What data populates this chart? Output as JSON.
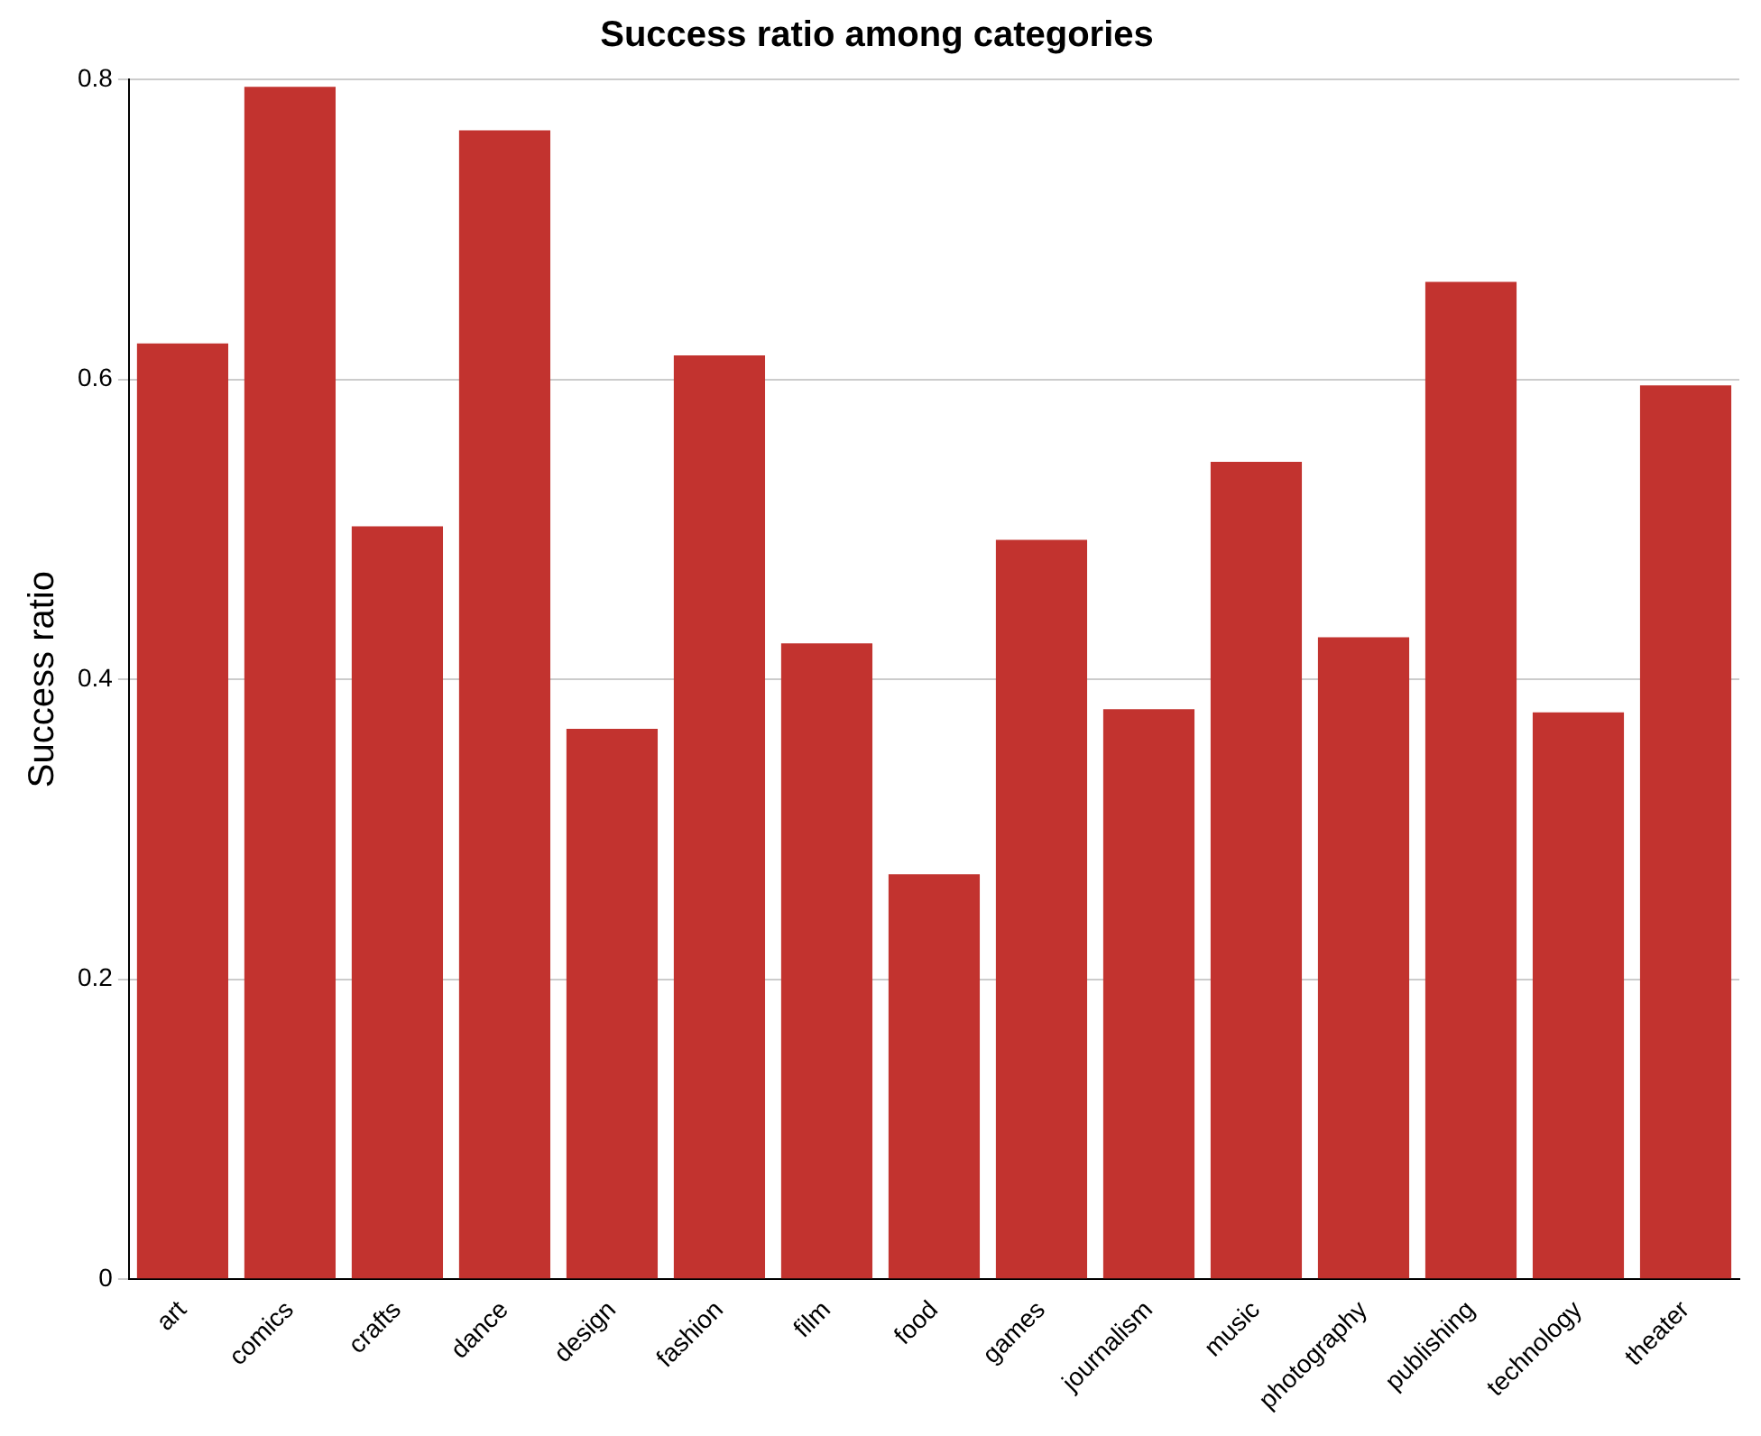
{
  "chart_data": {
    "type": "bar",
    "title": "Success ratio among categories",
    "ylabel": "Success ratio",
    "categories": [
      "art",
      "comics",
      "crafts",
      "dance",
      "design",
      "fashion",
      "film",
      "food",
      "games",
      "journalism",
      "music",
      "photography",
      "publishing",
      "technology",
      "theater"
    ],
    "values": [
      0.624,
      0.795,
      0.502,
      0.766,
      0.367,
      0.616,
      0.424,
      0.27,
      0.493,
      0.38,
      0.545,
      0.428,
      0.665,
      0.378,
      0.596
    ],
    "color": "#c2332f",
    "ylim": [
      0,
      0.8
    ],
    "yticks": [
      0,
      0.2,
      0.4,
      0.6,
      0.8
    ],
    "grid": "y",
    "legend": false
  }
}
